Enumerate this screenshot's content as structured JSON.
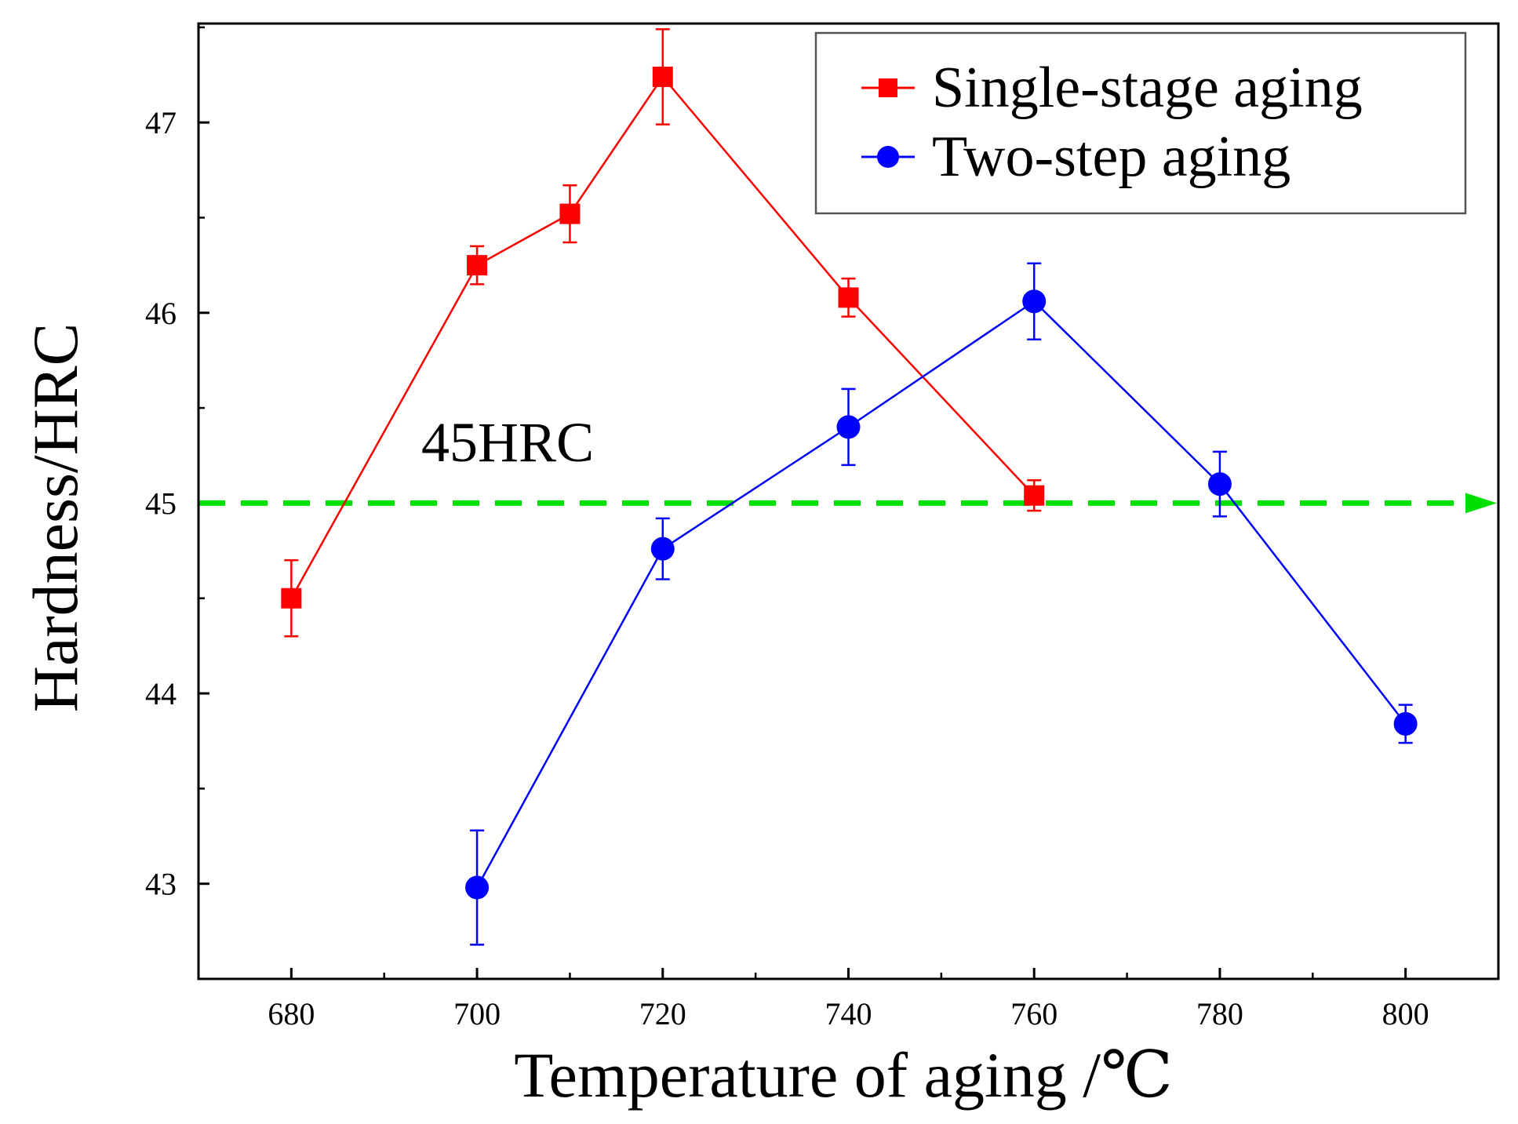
{
  "chart_data": {
    "type": "line",
    "title": "",
    "xlabel": "Temperature of aging /℃",
    "ylabel": "Hardness/HRC",
    "xlim": [
      670,
      810
    ],
    "ylim": [
      42.5,
      47.52
    ],
    "xticks": [
      680,
      700,
      720,
      740,
      760,
      780,
      800
    ],
    "yticks": [
      43,
      44,
      45,
      46,
      47
    ],
    "grid": false,
    "legend_position": "top-right",
    "series": [
      {
        "name": "Single-stage  aging",
        "color": "#ff0000",
        "marker": "square",
        "x": [
          680,
          700,
          710,
          720,
          740,
          760
        ],
        "y": [
          44.5,
          46.25,
          46.52,
          47.24,
          46.08,
          45.04
        ],
        "err": [
          0.2,
          0.1,
          0.15,
          0.25,
          0.1,
          0.08
        ]
      },
      {
        "name": "Two-step aging",
        "color": "#0000ff",
        "marker": "circle",
        "x": [
          700,
          720,
          740,
          760,
          780,
          800
        ],
        "y": [
          42.98,
          44.76,
          45.4,
          46.06,
          45.1,
          43.84
        ],
        "err": [
          0.3,
          0.16,
          0.2,
          0.2,
          0.17,
          0.1
        ]
      }
    ],
    "reference_line": {
      "y": 45,
      "label": "45HRC",
      "color": "#00e000",
      "style": "dashed"
    }
  }
}
